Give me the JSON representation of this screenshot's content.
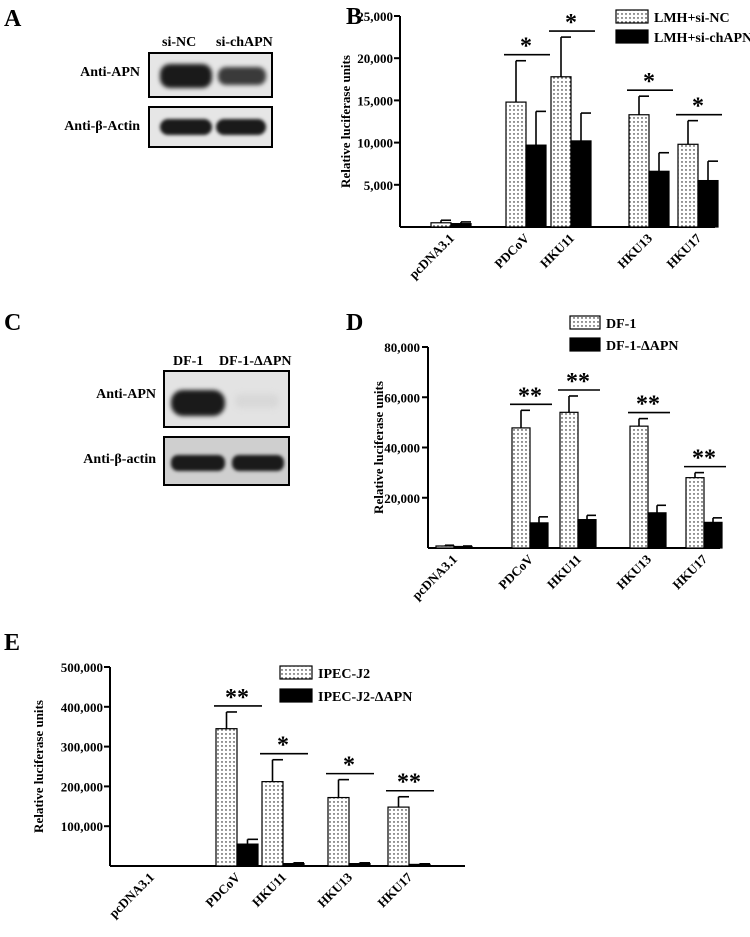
{
  "panels": {
    "A": {
      "letter": "A",
      "lanes": [
        "si-NC",
        "si-chAPN"
      ],
      "rows": [
        "Anti-APN",
        "Anti-β-Actin"
      ]
    },
    "C": {
      "letter": "C",
      "lanes": [
        "DF-1",
        "DF-1-ΔAPN"
      ],
      "rows": [
        "Anti-APN",
        "Anti-β-actin"
      ]
    }
  },
  "chart_data": [
    {
      "type": "bar",
      "letter": "B",
      "categories": [
        "pcDNA3.1",
        "PDCoV",
        "HKU11",
        "HKU13",
        "HKU17"
      ],
      "ylabel": "Relative luciferase units",
      "ylim": [
        0,
        25000
      ],
      "yticks": [
        "5,000",
        "10,000",
        "15,000",
        "20,000",
        "25,000"
      ],
      "series": [
        {
          "name": "LMH+si-NC",
          "values": [
            500,
            14800,
            17800,
            13300,
            9800
          ],
          "errors": [
            300,
            4900,
            4700,
            2200,
            2800
          ]
        },
        {
          "name": "LMH+si-chAPN",
          "values": [
            400,
            9700,
            10200,
            6600,
            5500
          ],
          "errors": [
            200,
            4000,
            3300,
            2200,
            2300
          ]
        }
      ],
      "significance": [
        "",
        "*",
        "*",
        "*",
        "*"
      ],
      "legend": "top-right"
    },
    {
      "type": "bar",
      "letter": "D",
      "categories": [
        "pcDNA3.1",
        "PDCoV",
        "HKU11",
        "HKU13",
        "HKU17"
      ],
      "ylabel": "Relative luciferase units",
      "ylim": [
        0,
        80000
      ],
      "yticks": [
        "20,000",
        "40,000",
        "60,000",
        "80,000"
      ],
      "series": [
        {
          "name": "DF-1",
          "values": [
            800,
            47800,
            54000,
            48500,
            28000
          ],
          "errors": [
            300,
            7000,
            6500,
            3000,
            2000
          ]
        },
        {
          "name": "DF-1-ΔAPN",
          "values": [
            600,
            10000,
            11300,
            14000,
            10200
          ],
          "errors": [
            200,
            2400,
            1700,
            3000,
            1800
          ]
        }
      ],
      "significance": [
        "",
        "**",
        "**",
        "**",
        "**"
      ],
      "legend": "top-center"
    },
    {
      "type": "bar",
      "letter": "E",
      "categories": [
        "pcDNA3.1",
        "PDCoV",
        "HKU11",
        "HKU13",
        "HKU17"
      ],
      "ylabel": "Relative luciferase units",
      "ylim": [
        0,
        500000
      ],
      "yticks": [
        "100,000",
        "200,000",
        "300,000",
        "400,000",
        "500,000"
      ],
      "series": [
        {
          "name": "IPEC-J2",
          "values": [
            0,
            345000,
            212000,
            172000,
            148000
          ],
          "errors": [
            0,
            42000,
            55000,
            45000,
            26000
          ]
        },
        {
          "name": "IPEC-J2-ΔAPN",
          "values": [
            0,
            55000,
            6000,
            6000,
            4000
          ],
          "errors": [
            0,
            12000,
            2000,
            2000,
            1500
          ]
        }
      ],
      "significance": [
        "",
        "**",
        "*",
        "*",
        "**"
      ],
      "legend": "top-center"
    }
  ],
  "colors": {
    "series1_fill": "#ffffff",
    "series1_dots": "#000000",
    "series2_fill": "#000000"
  }
}
